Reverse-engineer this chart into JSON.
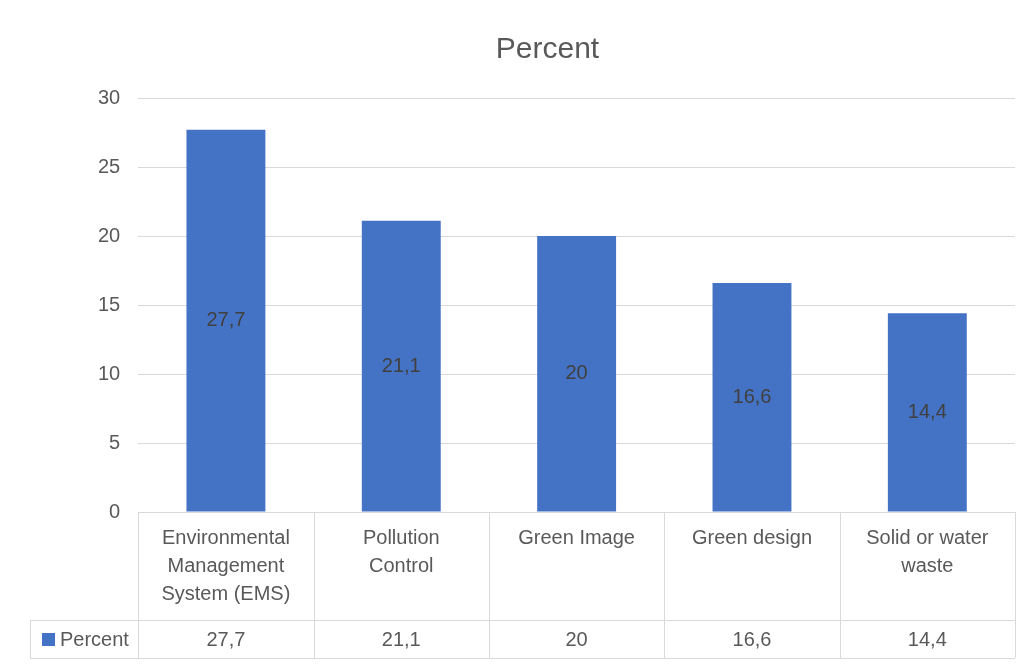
{
  "chart_data": {
    "type": "bar",
    "title": "Percent",
    "categories": [
      "Environmental Management System (EMS)",
      "Pollution Control",
      "Green Image",
      "Green design",
      "Solid or water waste"
    ],
    "series": [
      {
        "name": "Percent",
        "color": "#4472c4",
        "values": [
          27.7,
          21.1,
          20,
          16.6,
          14.4
        ],
        "value_labels": [
          "27,7",
          "21,1",
          "20",
          "16,6",
          "14,4"
        ]
      }
    ],
    "ylim": [
      0,
      30
    ],
    "yticks": [
      0,
      5,
      10,
      15,
      20,
      25,
      30
    ],
    "grid": "y",
    "legend": "bottom"
  }
}
